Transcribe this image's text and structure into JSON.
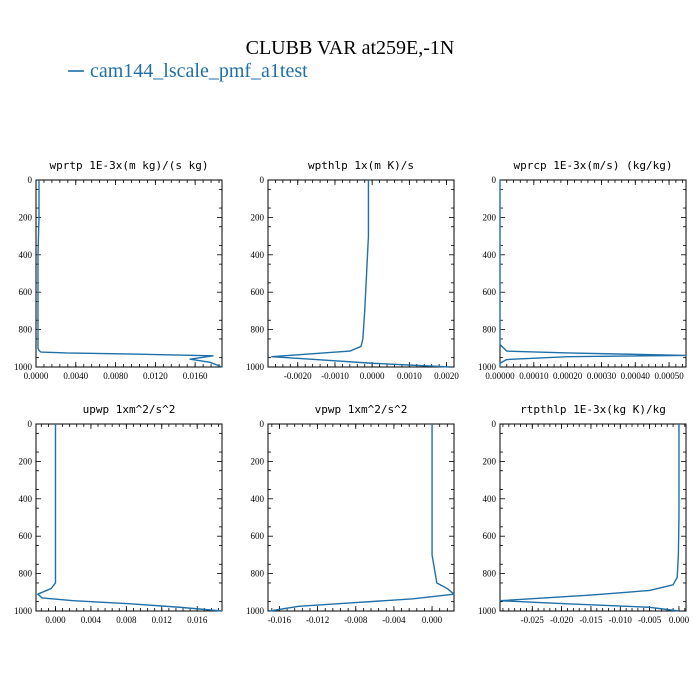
{
  "title": "CLUBB VAR at259E,-1N",
  "legend": {
    "label": "cam144_lscale_pmf_a1test",
    "color": "#1f6fa8"
  },
  "chart_data": [
    {
      "type": "line",
      "title": "wprtp  1E-3x(m kg)/(s kg)",
      "xlim": [
        0.0,
        0.0187
      ],
      "ylim": [
        1000,
        0
      ],
      "xticks": [
        0.0,
        0.004,
        0.008,
        0.012,
        0.016
      ],
      "xticklabels": [
        "0.0000",
        "0.0040",
        "0.0080",
        "0.0120",
        "0.0160"
      ],
      "yticks": [
        0,
        200,
        400,
        600,
        800,
        1000
      ],
      "series": [
        {
          "x": [
            0.0003,
            0.0003,
            0.0002,
            0.0002,
            0.0002,
            0.0002,
            0.0003,
            0.0005,
            0.003,
            0.009,
            0.0178,
            0.0155,
            0.0175,
            0.0187
          ],
          "y": [
            0,
            200,
            400,
            600,
            800,
            900,
            912,
            920,
            925,
            930,
            940,
            958,
            975,
            1000
          ]
        }
      ]
    },
    {
      "type": "line",
      "title": "wpthlp  1x(m K)/s",
      "xlim": [
        -0.0028,
        0.0022
      ],
      "ylim": [
        1000,
        0
      ],
      "xticks": [
        -0.002,
        -0.001,
        0.0,
        0.001,
        0.002
      ],
      "xticklabels": [
        "-0.0020",
        "-0.0010",
        "0.0000",
        "0.0010",
        "0.0020"
      ],
      "yticks": [
        0,
        200,
        400,
        600,
        800,
        1000
      ],
      "series": [
        {
          "x": [
            -0.0001,
            -0.0001,
            -0.0001,
            -0.00015,
            -0.0002,
            -0.00025,
            -0.0003,
            -0.0006,
            -0.0027,
            -0.0015,
            0.0,
            0.0021
          ],
          "y": [
            0,
            100,
            300,
            500,
            700,
            850,
            890,
            915,
            945,
            960,
            980,
            1000
          ]
        }
      ]
    },
    {
      "type": "line",
      "title": "wprcp  1E-3x(m/s) (kg/kg)",
      "xlim": [
        0.0,
        0.00055
      ],
      "ylim": [
        1000,
        0
      ],
      "xticks": [
        0.0,
        0.0001,
        0.0002,
        0.0003,
        0.0004,
        0.0005
      ],
      "xticklabels": [
        "0.00000",
        "0.00010",
        "0.00020",
        "0.00030",
        "0.00040",
        "0.00050"
      ],
      "yticks": [
        0,
        200,
        400,
        600,
        800,
        1000
      ],
      "series": [
        {
          "x": [
            0.0,
            0.0,
            0.0,
            0.0,
            2e-05,
            0.0002,
            0.00055,
            0.0002,
            2e-05,
            0.0,
            0.0
          ],
          "y": [
            0,
            300,
            600,
            880,
            915,
            925,
            938,
            945,
            960,
            980,
            1000
          ]
        }
      ]
    },
    {
      "type": "line",
      "title": "upwp  1xm^2/s^2",
      "xlim": [
        -0.0022,
        0.0188
      ],
      "ylim": [
        1000,
        0
      ],
      "xticks": [
        0.0,
        0.004,
        0.008,
        0.012,
        0.016
      ],
      "xticklabels": [
        "0.000",
        "0.004",
        "0.008",
        "0.012",
        "0.016"
      ],
      "yticks": [
        0,
        200,
        400,
        600,
        800,
        1000
      ],
      "series": [
        {
          "x": [
            0.0,
            0.0,
            0.0,
            0.0,
            0.0,
            0.0,
            -0.0005,
            -0.002,
            -0.0015,
            0.002,
            0.008,
            0.014,
            0.0188
          ],
          "y": [
            0,
            100,
            300,
            500,
            700,
            850,
            880,
            910,
            930,
            945,
            960,
            980,
            1000
          ]
        }
      ]
    },
    {
      "type": "line",
      "title": "vpwp  1xm^2/s^2",
      "xlim": [
        -0.0172,
        0.0023
      ],
      "ylim": [
        1000,
        0
      ],
      "xticks": [
        -0.016,
        -0.012,
        -0.008,
        -0.004,
        0.0
      ],
      "xticklabels": [
        "-0.016",
        "-0.012",
        "-0.008",
        "-0.004",
        "0.000"
      ],
      "yticks": [
        0,
        200,
        400,
        600,
        800,
        1000
      ],
      "series": [
        {
          "x": [
            0.0,
            0.0,
            0.0,
            0.0,
            0.0,
            0.0005,
            0.0016,
            0.0023,
            -0.002,
            -0.008,
            -0.014,
            -0.017
          ],
          "y": [
            0,
            100,
            300,
            500,
            700,
            850,
            880,
            910,
            935,
            955,
            975,
            1000
          ]
        }
      ]
    },
    {
      "type": "line",
      "title": "rtpthlp  1E-3x(kg K)/kg",
      "xlim": [
        -0.0305,
        0.0012
      ],
      "ylim": [
        1000,
        0
      ],
      "xticks": [
        -0.025,
        -0.02,
        -0.015,
        -0.01,
        -0.005,
        0.0
      ],
      "xticklabels": [
        "-0.025",
        "-0.020",
        "-0.015",
        "-0.010",
        "-0.005",
        "0.000"
      ],
      "yticks": [
        0,
        200,
        400,
        600,
        800,
        1000
      ],
      "series": [
        {
          "x": [
            0.0,
            0.0,
            0.0,
            -0.0001,
            -0.0003,
            -0.001,
            -0.005,
            -0.015,
            -0.0305,
            -0.02,
            -0.005,
            0.0
          ],
          "y": [
            0,
            200,
            500,
            700,
            820,
            860,
            890,
            915,
            945,
            960,
            980,
            1000
          ]
        }
      ]
    }
  ]
}
